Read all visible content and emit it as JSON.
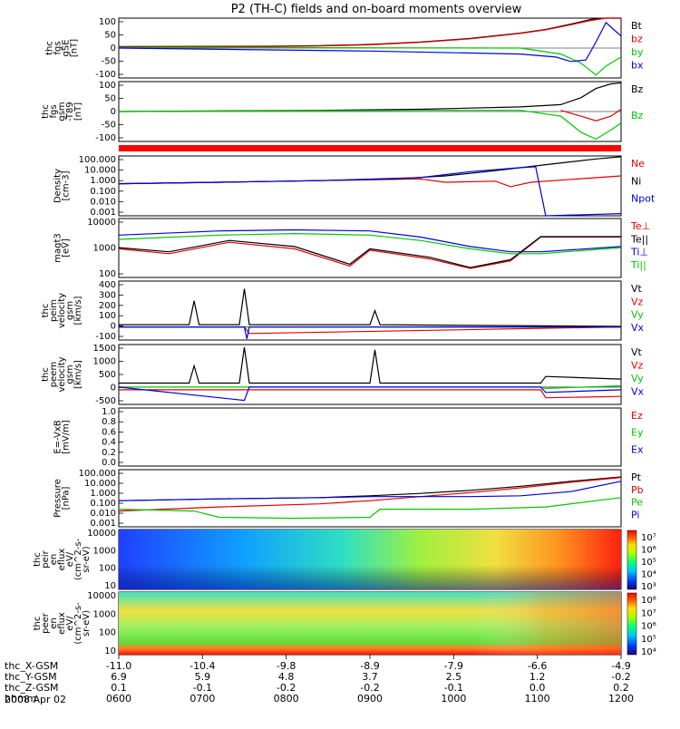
{
  "title": "P2 (TH-C) fields and on-board moments overview",
  "date": "2008 Apr 02",
  "colors": {
    "black": "#000000",
    "red": "#e00000",
    "green": "#00c800",
    "blue": "#0000dd",
    "bar_red": "#ff0000"
  },
  "chart_data": [
    {
      "type": "line",
      "id": "fgs-gse",
      "ylabel": [
        "thc",
        "fgs",
        "gSE",
        "[nT]"
      ],
      "ylim": [
        -100,
        100
      ],
      "yticks": [
        "100",
        "50",
        "0",
        "-50",
        "-100"
      ],
      "series": [
        {
          "name": "Bt",
          "color": "#000000",
          "x": [
            0,
            0.3,
            0.4,
            0.5,
            0.6,
            0.7,
            0.8,
            0.85,
            0.9,
            0.94,
            0.97,
            1.0
          ],
          "y": [
            5,
            6,
            8,
            12,
            20,
            32,
            50,
            62,
            80,
            96,
            105,
            110
          ]
        },
        {
          "name": "bz",
          "color": "#e00000",
          "x": [
            0,
            0.3,
            0.4,
            0.5,
            0.6,
            0.7,
            0.8,
            0.85,
            0.9,
            0.94,
            0.97,
            1.0
          ],
          "y": [
            4,
            5,
            7,
            11,
            19,
            31,
            49,
            61,
            78,
            92,
            100,
            104
          ]
        },
        {
          "name": "by",
          "color": "#00c800",
          "x": [
            0,
            0.5,
            0.8,
            0.88,
            0.92,
            0.95,
            0.97,
            1.0
          ],
          "y": [
            2,
            1,
            0,
            -20,
            -50,
            -90,
            -60,
            -30
          ]
        },
        {
          "name": "bx",
          "color": "#0000dd",
          "x": [
            0,
            0.5,
            0.8,
            0.87,
            0.9,
            0.93,
            0.95,
            0.97,
            1.0
          ],
          "y": [
            0,
            -10,
            -20,
            -30,
            -45,
            -40,
            20,
            85,
            40
          ]
        }
      ]
    },
    {
      "type": "line",
      "id": "fgs-gsm",
      "ylabel": [
        "thc",
        "fgs",
        "gsm",
        "-T89",
        "[nT]"
      ],
      "ylim": [
        -130,
        130
      ],
      "yticks": [
        "100",
        "50",
        "0",
        "-50",
        "-100"
      ],
      "series": [
        {
          "name": "Bz",
          "color": "#000000",
          "x": [
            0,
            0.4,
            0.6,
            0.8,
            0.88,
            0.92,
            0.95,
            0.98,
            1.0
          ],
          "y": [
            0,
            5,
            10,
            20,
            30,
            60,
            100,
            120,
            125
          ]
        },
        {
          "name": "Bz",
          "color": "#00c800",
          "x": [
            0,
            0.6,
            0.8,
            0.88,
            0.92,
            0.95,
            0.98,
            1.0
          ],
          "y": [
            0,
            5,
            5,
            -20,
            -90,
            -120,
            -80,
            -50
          ]
        },
        {
          "name": "",
          "color": "#e00000",
          "x": [
            0.88,
            0.92,
            0.95,
            0.98,
            1.0
          ],
          "y": [
            5,
            -20,
            -40,
            -20,
            10
          ]
        }
      ]
    },
    {
      "type": "line",
      "id": "density",
      "scale": "log",
      "ylabel": [
        "Density",
        "[cm-3]"
      ],
      "ylim": [
        0.0003,
        300
      ],
      "yticks": [
        "100.000",
        "10.000",
        "1.000",
        "0.100",
        "0.010",
        "0.001"
      ],
      "series": [
        {
          "name": "Ne",
          "color": "#e00000",
          "x": [
            0,
            0.2,
            0.4,
            0.6,
            0.65,
            0.75,
            0.78,
            0.82,
            1.0
          ],
          "y": [
            0.5,
            0.7,
            1.0,
            1.5,
            0.7,
            0.9,
            0.25,
            0.7,
            3
          ]
        },
        {
          "name": "Ni",
          "color": "#000000",
          "x": [
            0,
            0.2,
            0.4,
            0.55,
            0.65,
            0.75,
            0.85,
            0.95,
            1.0
          ],
          "y": [
            0.5,
            0.7,
            1.0,
            1.5,
            3,
            10,
            40,
            150,
            250
          ]
        },
        {
          "name": "Npot",
          "color": "#0000dd",
          "x": [
            0,
            0.2,
            0.4,
            0.6,
            0.7,
            0.8,
            0.83,
            0.85,
            1.0
          ],
          "y": [
            0.5,
            0.7,
            1.0,
            2,
            8,
            20,
            25,
            0.0003,
            0.0005
          ]
        }
      ]
    },
    {
      "type": "line",
      "id": "temperature",
      "scale": "log",
      "ylabel": [
        "magt3",
        "[eV]"
      ],
      "ylim": [
        50,
        15000
      ],
      "yticks": [
        "10000",
        "1000",
        "100"
      ],
      "series": [
        {
          "name": "Te⊥",
          "color": "#e00000",
          "x": [
            0,
            0.1,
            0.22,
            0.35,
            0.46,
            0.5,
            0.62,
            0.7,
            0.78,
            0.84,
            1.0
          ],
          "y": [
            800,
            500,
            1500,
            800,
            150,
            700,
            300,
            120,
            250,
            2500,
            2500
          ]
        },
        {
          "name": "Te||",
          "color": "#000000",
          "x": [
            0,
            0.1,
            0.22,
            0.35,
            0.46,
            0.5,
            0.62,
            0.7,
            0.78,
            0.84,
            1.0
          ],
          "y": [
            900,
            600,
            1800,
            1000,
            180,
            800,
            350,
            130,
            280,
            2600,
            2600
          ]
        },
        {
          "name": "Ti⊥",
          "color": "#0000dd",
          "x": [
            0,
            0.2,
            0.35,
            0.5,
            0.6,
            0.7,
            0.78,
            0.84,
            1.0
          ],
          "y": [
            3000,
            4500,
            5000,
            4500,
            2500,
            1000,
            600,
            600,
            1000
          ]
        },
        {
          "name": "Ti||",
          "color": "#00c800",
          "x": [
            0,
            0.2,
            0.35,
            0.5,
            0.6,
            0.7,
            0.78,
            0.84,
            1.0
          ],
          "y": [
            2000,
            3000,
            3500,
            3000,
            1800,
            800,
            500,
            500,
            900
          ]
        }
      ]
    },
    {
      "type": "line",
      "id": "peim-velocity",
      "ylabel": [
        "thc",
        "peim",
        "velocity",
        "gsm",
        "[km/s]"
      ],
      "ylim": [
        -120,
        420
      ],
      "yticks": [
        "400",
        "300",
        "200",
        "100",
        "0",
        "-100"
      ],
      "series": [
        {
          "name": "Vt",
          "color": "#000000",
          "x": [
            0,
            0.14,
            0.15,
            0.16,
            0.24,
            0.25,
            0.26,
            0.5,
            0.51,
            0.52,
            1.0
          ],
          "y": [
            20,
            20,
            240,
            20,
            20,
            350,
            20,
            20,
            150,
            20,
            5
          ]
        },
        {
          "name": "Vz",
          "color": "#e00000",
          "x": [
            0,
            0.25,
            0.26,
            1.0
          ],
          "y": [
            0,
            0,
            -60,
            0
          ]
        },
        {
          "name": "Vy",
          "color": "#00c800",
          "x": [
            0,
            1.0
          ],
          "y": [
            0,
            0
          ]
        },
        {
          "name": "Vx",
          "color": "#0000dd",
          "x": [
            0,
            0.25,
            0.255,
            0.26,
            1.0
          ],
          "y": [
            0,
            0,
            -110,
            0,
            0
          ]
        }
      ]
    },
    {
      "type": "line",
      "id": "peem-velocity",
      "ylabel": [
        "thc",
        "peem",
        "velocity",
        "gsm",
        "[km/s]"
      ],
      "ylim": [
        -650,
        1600
      ],
      "yticks": [
        "1500",
        "1000",
        "500",
        "0",
        "-500"
      ],
      "series": [
        {
          "name": "Vt",
          "color": "#000000",
          "x": [
            0,
            0.14,
            0.15,
            0.16,
            0.24,
            0.25,
            0.26,
            0.5,
            0.51,
            0.52,
            0.84,
            0.85,
            1.0
          ],
          "y": [
            150,
            150,
            800,
            150,
            150,
            1500,
            150,
            150,
            1400,
            150,
            150,
            400,
            300
          ]
        },
        {
          "name": "Vz",
          "color": "#e00000",
          "x": [
            0,
            0.84,
            0.85,
            1.0
          ],
          "y": [
            -100,
            -100,
            -400,
            -350
          ]
        },
        {
          "name": "Vy",
          "color": "#00c800",
          "x": [
            0,
            0.84,
            0.85,
            1.0
          ],
          "y": [
            0,
            0,
            -50,
            50
          ]
        },
        {
          "name": "Vx",
          "color": "#0000dd",
          "x": [
            0,
            0.25,
            0.26,
            0.84,
            0.85,
            1.0
          ],
          "y": [
            0,
            -500,
            0,
            0,
            -200,
            -100
          ]
        }
      ]
    },
    {
      "type": "line",
      "id": "efield",
      "ylabel": [
        "E=-VxB",
        "[mV/m]"
      ],
      "ylim": [
        0,
        1.0
      ],
      "yticks": [
        "1.0",
        "0.8",
        "0.6",
        "0.4",
        "0.2",
        "0.0"
      ],
      "series": [
        {
          "name": "Ez",
          "color": "#e00000",
          "x": [],
          "y": []
        },
        {
          "name": "Ey",
          "color": "#00c800",
          "x": [],
          "y": []
        },
        {
          "name": "Ex",
          "color": "#0000dd",
          "x": [],
          "y": []
        }
      ]
    },
    {
      "type": "line",
      "id": "pressure",
      "scale": "log",
      "ylabel": [
        "Pressure",
        "[nPa]"
      ],
      "ylim": [
        0.0006,
        200
      ],
      "yticks": [
        "100.000",
        "10.000",
        "1.000",
        "0.100",
        "0.010",
        "0.001"
      ],
      "series": [
        {
          "name": "Pt",
          "color": "#000000",
          "x": [
            0,
            0.2,
            0.4,
            0.5,
            0.6,
            0.7,
            0.8,
            0.9,
            1.0
          ],
          "y": [
            0.2,
            0.3,
            0.4,
            0.6,
            1,
            2,
            5,
            15,
            40
          ]
        },
        {
          "name": "Pb",
          "color": "#e00000",
          "x": [
            0,
            0.2,
            0.4,
            0.5,
            0.6,
            0.7,
            0.8,
            0.9,
            1.0
          ],
          "y": [
            0.02,
            0.05,
            0.1,
            0.2,
            0.5,
            1.2,
            3.5,
            12,
            35
          ]
        },
        {
          "name": "Pe",
          "color": "#00c800",
          "x": [
            0,
            0.15,
            0.2,
            0.35,
            0.5,
            0.52,
            0.7,
            0.85,
            1.0
          ],
          "y": [
            0.03,
            0.02,
            0.005,
            0.004,
            0.005,
            0.03,
            0.03,
            0.05,
            0.4
          ]
        },
        {
          "name": "Pi",
          "color": "#0000dd",
          "x": [
            0,
            0.2,
            0.4,
            0.5,
            0.6,
            0.7,
            0.8,
            0.9,
            1.0
          ],
          "y": [
            0.2,
            0.3,
            0.4,
            0.5,
            0.5,
            0.5,
            0.6,
            1.5,
            15
          ]
        }
      ]
    },
    {
      "type": "heatmap",
      "id": "peir-spec",
      "ylabel": [
        "thc",
        "peir",
        "en",
        "eflux",
        "eV/",
        "(cm^2-s-",
        "sr-eV)"
      ],
      "yticks": [
        "10000",
        "1000",
        "100",
        "10"
      ],
      "colorbar_ticks": [
        "10⁷",
        "10⁶",
        "10⁵",
        "10⁴",
        "10³"
      ]
    },
    {
      "type": "heatmap",
      "id": "peer-spec",
      "ylabel": [
        "thc",
        "peer",
        "en",
        "eflux",
        "eV/",
        "(cm^2-s-",
        "sr-eV)"
      ],
      "yticks": [
        "10000",
        "1000",
        "100",
        "10"
      ],
      "colorbar_ticks": [
        "10⁸",
        "10⁷",
        "10⁶",
        "10⁵",
        "10⁴"
      ]
    }
  ],
  "axis": {
    "rows": [
      {
        "label": "thc_X-GSM",
        "values": [
          "-11.0",
          "-10.4",
          "-9.8",
          "-8.9",
          "-7.9",
          "-6.6",
          "-4.9"
        ]
      },
      {
        "label": "thc_Y-GSM",
        "values": [
          "6.9",
          "5.9",
          "4.8",
          "3.7",
          "2.5",
          "1.2",
          "-0.2"
        ]
      },
      {
        "label": "thc_Z-GSM",
        "values": [
          "0.1",
          "-0.1",
          "-0.2",
          "-0.2",
          "-0.1",
          "0.0",
          "0.2"
        ]
      },
      {
        "label": "hhmm",
        "values": [
          "0600",
          "0700",
          "0800",
          "0900",
          "1000",
          "1100",
          "1200"
        ]
      }
    ]
  }
}
